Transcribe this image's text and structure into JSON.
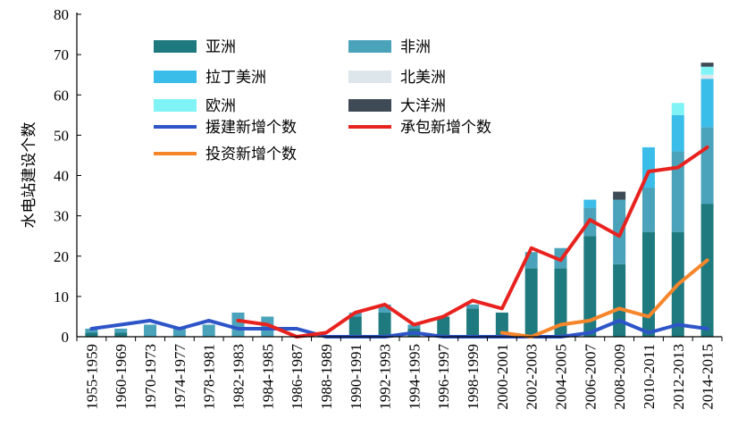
{
  "chart_data": {
    "type": "bar",
    "stacked": true,
    "ylabel": "水电站建设个数",
    "xlabel": "",
    "ylim": [
      0,
      80
    ],
    "yticks": [
      0,
      10,
      20,
      30,
      40,
      50,
      60,
      70,
      80
    ],
    "categories": [
      "1955-1959",
      "1960-1969",
      "1970-1973",
      "1974-1977",
      "1978-1981",
      "1982-1983",
      "1984-1985",
      "1986-1987",
      "1988-1989",
      "1990-1991",
      "1992-1993",
      "1994-1995",
      "1996-1997",
      "1998-1999",
      "2000-2001",
      "2002-2003",
      "2004-2005",
      "2006-2007",
      "2008-2009",
      "2010-2011",
      "2012-2013",
      "2014-2015"
    ],
    "series": [
      {
        "name": "亚洲",
        "kind": "bar",
        "color": "#1f7a80",
        "values": [
          1,
          1,
          0,
          0,
          0,
          0,
          0,
          0,
          0,
          5,
          6,
          2,
          5,
          7,
          6,
          17,
          17,
          25,
          18,
          26,
          26,
          33
        ]
      },
      {
        "name": "非洲",
        "kind": "bar",
        "color": "#4aa3bb",
        "values": [
          1,
          1,
          3,
          2,
          3,
          6,
          5,
          0,
          0,
          1,
          2,
          1,
          0,
          1,
          0,
          4,
          5,
          7,
          16,
          11,
          20,
          19
        ]
      },
      {
        "name": "拉丁美洲",
        "kind": "bar",
        "color": "#3bbdea",
        "values": [
          0,
          0,
          0,
          0,
          0,
          0,
          0,
          0,
          0,
          0,
          0,
          0,
          0,
          0,
          0,
          0,
          0,
          2,
          0,
          10,
          9,
          12
        ]
      },
      {
        "name": "北美洲",
        "kind": "bar",
        "color": "#dde6ea",
        "values": [
          0,
          0,
          0,
          0,
          0,
          0,
          0,
          0,
          0,
          0,
          0,
          0,
          0,
          0,
          0,
          0,
          0,
          0,
          0,
          0,
          0,
          1
        ]
      },
      {
        "name": "欧洲",
        "kind": "bar",
        "color": "#7ff3f6",
        "values": [
          0,
          0,
          0,
          0,
          0,
          0,
          0,
          0,
          0,
          0,
          0,
          0,
          0,
          0,
          0,
          0,
          0,
          0,
          0,
          0,
          3,
          2
        ]
      },
      {
        "name": "大洋洲",
        "kind": "bar",
        "color": "#3e4a55",
        "values": [
          0,
          0,
          0,
          0,
          0,
          0,
          0,
          0,
          0,
          0,
          0,
          0,
          0,
          0,
          0,
          0,
          0,
          0,
          2,
          0,
          0,
          1
        ]
      },
      {
        "name": "援建新增个数",
        "kind": "line",
        "color": "#2e55c8",
        "values": [
          2,
          3,
          4,
          2,
          4,
          2,
          2,
          2,
          0,
          0,
          0,
          1,
          0,
          0,
          0,
          0,
          0,
          1,
          4,
          1,
          3,
          2
        ]
      },
      {
        "name": "承包新增个数",
        "kind": "line",
        "color": "#e8231f",
        "values": [
          null,
          null,
          null,
          null,
          null,
          4,
          3,
          0,
          1,
          6,
          8,
          3,
          5,
          9,
          7,
          22,
          19,
          29,
          25,
          41,
          42,
          47
        ]
      },
      {
        "name": "投资新增个数",
        "kind": "line",
        "color": "#f5862b",
        "values": [
          null,
          null,
          null,
          null,
          null,
          null,
          null,
          null,
          null,
          null,
          null,
          null,
          null,
          null,
          1,
          0,
          3,
          4,
          7,
          5,
          13,
          19
        ]
      }
    ],
    "legend": [
      {
        "label": "亚洲",
        "swatch": "bar",
        "color": "#1f7a80"
      },
      {
        "label": "非洲",
        "swatch": "bar",
        "color": "#4aa3bb"
      },
      {
        "label": "拉丁美洲",
        "swatch": "bar",
        "color": "#3bbdea"
      },
      {
        "label": "北美洲",
        "swatch": "bar",
        "color": "#dde6ea"
      },
      {
        "label": "欧洲",
        "swatch": "bar",
        "color": "#7ff3f6"
      },
      {
        "label": "大洋洲",
        "swatch": "bar",
        "color": "#3e4a55"
      },
      {
        "label": "援建新增个数",
        "swatch": "line",
        "color": "#2e55c8"
      },
      {
        "label": "承包新增个数",
        "swatch": "line",
        "color": "#e8231f"
      },
      {
        "label": "投资新增个数",
        "swatch": "line",
        "color": "#f5862b"
      }
    ],
    "legend_position": "top-left, inside plot",
    "grid": false
  }
}
